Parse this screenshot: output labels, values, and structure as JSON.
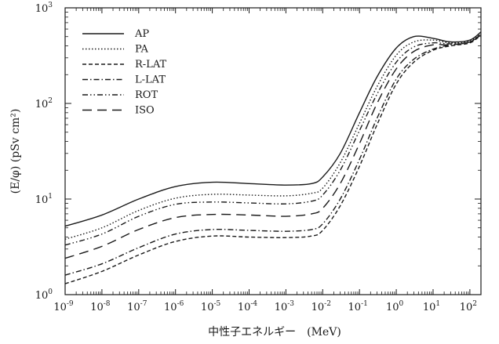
{
  "chart_data": {
    "type": "line",
    "xscale": "log",
    "yscale": "log",
    "xlim": [
      1e-09,
      200
    ],
    "ylim": [
      1,
      1000
    ],
    "xlabel": "中性子エネルギー　(MeV)",
    "ylabel": "(E/φ) (pSv cm²)",
    "x_ticks": [
      {
        "value": 1e-09,
        "base": "10",
        "exp": "-9"
      },
      {
        "value": 1e-08,
        "base": "10",
        "exp": "-8"
      },
      {
        "value": 1e-07,
        "base": "10",
        "exp": "-7"
      },
      {
        "value": 1e-06,
        "base": "10",
        "exp": "-6"
      },
      {
        "value": 1e-05,
        "base": "10",
        "exp": "-5"
      },
      {
        "value": 0.0001,
        "base": "10",
        "exp": "-4"
      },
      {
        "value": 0.001,
        "base": "10",
        "exp": "-3"
      },
      {
        "value": 0.01,
        "base": "10",
        "exp": "-2"
      },
      {
        "value": 0.1,
        "base": "10",
        "exp": "-1"
      },
      {
        "value": 1,
        "base": "10",
        "exp": "0"
      },
      {
        "value": 10,
        "base": "10",
        "exp": "1"
      },
      {
        "value": 100,
        "base": "10",
        "exp": "2"
      }
    ],
    "y_ticks": [
      {
        "value": 1,
        "base": "10",
        "exp": "0"
      },
      {
        "value": 10,
        "base": "10",
        "exp": "1"
      },
      {
        "value": 100,
        "base": "10",
        "exp": "2"
      },
      {
        "value": 1000,
        "base": "10",
        "exp": "3"
      }
    ],
    "legend_position": "top-left",
    "x": [
      1e-09,
      1e-08,
      1e-07,
      1e-06,
      1e-05,
      0.0001,
      0.001,
      0.005,
      0.01,
      0.03,
      0.1,
      0.3,
      1,
      3,
      10,
      30,
      100,
      200
    ],
    "series": [
      {
        "name": "AP",
        "dash": "solid",
        "values": [
          5.2,
          6.8,
          10.0,
          13.5,
          15.0,
          14.5,
          14.0,
          14.5,
          17.0,
          30,
          80,
          190,
          380,
          500,
          480,
          440,
          460,
          560
        ]
      },
      {
        "name": "PA",
        "dash": "dotted",
        "values": [
          3.8,
          5.0,
          7.6,
          10.2,
          11.2,
          11.0,
          10.8,
          11.5,
          13.0,
          24,
          62,
          150,
          320,
          440,
          460,
          430,
          450,
          540
        ]
      },
      {
        "name": "R-LAT",
        "dash": "dashed-short",
        "values": [
          1.3,
          1.75,
          2.6,
          3.6,
          4.1,
          4.0,
          3.95,
          4.1,
          4.7,
          8.5,
          22,
          60,
          160,
          270,
          360,
          400,
          430,
          520
        ]
      },
      {
        "name": "L-LAT",
        "dash": "dash-dot",
        "values": [
          1.6,
          2.1,
          3.1,
          4.3,
          4.8,
          4.7,
          4.6,
          4.8,
          5.5,
          10.0,
          26,
          70,
          180,
          290,
          370,
          410,
          440,
          530
        ]
      },
      {
        "name": "ROT",
        "dash": "dash-dot-dot",
        "values": [
          3.3,
          4.3,
          6.6,
          8.8,
          9.3,
          9.1,
          8.9,
          9.5,
          11.0,
          20,
          52,
          125,
          270,
          390,
          430,
          420,
          440,
          530
        ]
      },
      {
        "name": "ISO",
        "dash": "dashed-long",
        "values": [
          2.4,
          3.2,
          4.8,
          6.4,
          6.9,
          6.8,
          6.6,
          7.0,
          8.0,
          14.5,
          38,
          100,
          230,
          350,
          410,
          410,
          440,
          530
        ]
      }
    ]
  }
}
